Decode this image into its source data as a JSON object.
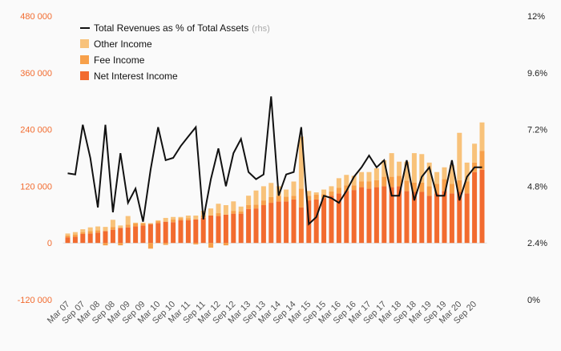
{
  "colors": {
    "net_interest": "#f26b2f",
    "fee": "#f7a04a",
    "other": "#f8c27a",
    "line": "#111111",
    "left_axis_text": "#f26b2f",
    "right_axis_text": "#222222",
    "x_axis_text": "#555555",
    "rhs_tag": "#aaaaaa"
  },
  "chart_data": {
    "type": "bar",
    "stacked": true,
    "title": "",
    "xlabel": "",
    "ylabel": "",
    "ylim": [
      -120000,
      480000
    ],
    "y2lim": [
      0,
      12
    ],
    "yticks": [
      -120000,
      0,
      120000,
      240000,
      360000,
      480000
    ],
    "ytick_labels": [
      "-120 000",
      "0",
      "120 000",
      "240 000",
      "360 000",
      "480 000"
    ],
    "y2ticks": [
      0,
      2.4,
      4.8,
      7.2,
      9.6,
      12
    ],
    "y2tick_labels": [
      "0%",
      "2.4%",
      "4.8%",
      "7.2%",
      "9.6%",
      "12%"
    ],
    "grid": false,
    "legend_position": "top-left",
    "categories": [
      "Mar 07",
      "Jun 07",
      "Sep 07",
      "Dec 07",
      "Mar 08",
      "Jun 08",
      "Sep 08",
      "Dec 08",
      "Mar 09",
      "Jun 09",
      "Sep 09",
      "Dec 09",
      "Mar 10",
      "Jun 10",
      "Sep 10",
      "Dec 10",
      "Mar 11",
      "Jun 11",
      "Sep 11",
      "Dec 11",
      "Mar 12",
      "Jun 12",
      "Sep 12",
      "Dec 12",
      "Mar 13",
      "Jun 13",
      "Sep 13",
      "Dec 13",
      "Mar 14",
      "Jun 14",
      "Sep 14",
      "Dec 14",
      "Mar 15",
      "Jun 15",
      "Sep 15",
      "Dec 15",
      "Mar 16",
      "Jun 16",
      "Sep 16",
      "Dec 16",
      "Mar 17",
      "Jun 17",
      "Sep 17",
      "Dec 17",
      "Mar 18",
      "Jun 18",
      "Sep 18",
      "Dec 18",
      "Mar 19",
      "Jun 19",
      "Sep 19",
      "Dec 19",
      "Mar 20",
      "Jun 20",
      "Sep 20",
      "Dec 20"
    ],
    "xtick_labels": [
      "Mar 07",
      "Sep 07",
      "Mar 08",
      "Sep 08",
      "Mar 09",
      "Sep 09",
      "Mar 10",
      "Sep 10",
      "Mar 11",
      "Sep 11",
      "Mar 12",
      "Sep 12",
      "Mar 13",
      "Sep 13",
      "Mar 14",
      "Sep 14",
      "Mar 15",
      "Sep 15",
      "Mar 16",
      "Sep 16",
      "Mar 17",
      "Sep 17",
      "Mar 18",
      "Sep 18",
      "Mar 19",
      "Sep 19",
      "Mar 20",
      "Sep 20"
    ],
    "series": [
      {
        "name": "Net Interest Income",
        "type": "bar",
        "axis": "left",
        "color_key": "net_interest",
        "values": [
          12000,
          13000,
          19000,
          20000,
          22000,
          25000,
          28000,
          32000,
          33000,
          35000,
          37000,
          40000,
          42000,
          45000,
          44000,
          48000,
          48000,
          50000,
          53000,
          58000,
          57000,
          60000,
          62000,
          62000,
          72000,
          73000,
          80000,
          85000,
          88000,
          88000,
          92000,
          75000,
          90000,
          92000,
          95000,
          100000,
          105000,
          110000,
          112000,
          118000,
          115000,
          118000,
          120000,
          118000,
          120000,
          110000,
          108000,
          108000,
          100000,
          105000,
          110000,
          105000,
          108000,
          105000,
          150000,
          155000
        ]
      },
      {
        "name": "Fee Income",
        "type": "bar",
        "axis": "left",
        "color_key": "fee",
        "values": [
          4000,
          5000,
          4000,
          5000,
          5000,
          -5000,
          6000,
          -5000,
          6000,
          6000,
          4000,
          -12000,
          4000,
          -4000,
          6000,
          4000,
          4000,
          -3000,
          5000,
          -10000,
          6000,
          -5000,
          6000,
          5000,
          8000,
          8000,
          10000,
          12000,
          12000,
          10000,
          8000,
          40000,
          10000,
          10000,
          8000,
          9000,
          12000,
          12000,
          10000,
          12000,
          15000,
          15000,
          20000,
          22000,
          22000,
          22000,
          20000,
          20000,
          20000,
          20000,
          25000,
          20000,
          25000,
          25000,
          20000,
          40000
        ]
      },
      {
        "name": "Other Income",
        "type": "bar",
        "axis": "left",
        "color_key": "other",
        "values": [
          4000,
          5000,
          6000,
          8000,
          8000,
          9000,
          15000,
          5000,
          18000,
          2000,
          2000,
          2000,
          2000,
          8000,
          5000,
          3000,
          6000,
          8000,
          10000,
          15000,
          20000,
          20000,
          20000,
          10000,
          20000,
          30000,
          30000,
          30000,
          20000,
          15000,
          30000,
          110000,
          10000,
          5000,
          10000,
          11000,
          20000,
          22000,
          20000,
          20000,
          20000,
          25000,
          35000,
          50000,
          30000,
          40000,
          62000,
          60000,
          50000,
          25000,
          25000,
          40000,
          100000,
          40000,
          40000,
          60000
        ]
      },
      {
        "name": "Total Revenues as % of Total Assets",
        "type": "line",
        "axis": "right",
        "color_key": "line",
        "values": [
          5.35,
          5.3,
          7.4,
          6.0,
          3.9,
          7.4,
          3.7,
          6.2,
          4.1,
          4.7,
          3.3,
          5.5,
          7.3,
          5.9,
          6.0,
          6.5,
          6.9,
          7.3,
          3.4,
          5.1,
          6.4,
          4.8,
          6.2,
          6.8,
          5.4,
          5.1,
          5.3,
          8.6,
          4.4,
          5.3,
          5.4,
          7.3,
          3.2,
          3.5,
          4.4,
          4.3,
          4.1,
          4.6,
          5.2,
          5.6,
          6.1,
          5.6,
          5.9,
          4.4,
          4.4,
          5.9,
          4.2,
          5.2,
          5.6,
          4.4,
          4.4,
          5.9,
          4.2,
          5.2,
          5.6,
          5.6
        ]
      }
    ],
    "legend": [
      {
        "label": "Total Revenues as % of Total Assets",
        "tag": "(rhs)",
        "kind": "line",
        "color_key": "line"
      },
      {
        "label": "Other Income",
        "kind": "swatch",
        "color_key": "other"
      },
      {
        "label": "Fee Income",
        "kind": "swatch",
        "color_key": "fee"
      },
      {
        "label": "Net Interest Income",
        "kind": "swatch",
        "color_key": "net_interest"
      }
    ]
  }
}
